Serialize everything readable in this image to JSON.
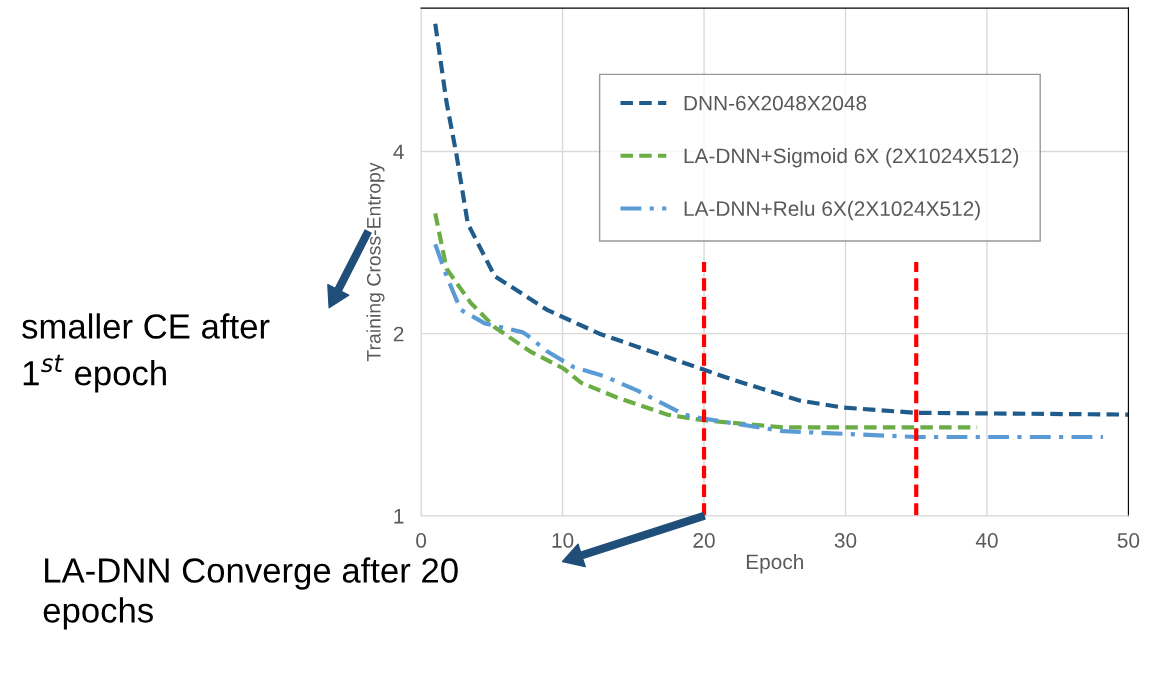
{
  "chart_data": {
    "type": "line",
    "xlabel": "Epoch",
    "ylabel": "Training Cross-Entropy",
    "log": "y",
    "xlim": [
      0,
      50
    ],
    "xticks": [
      0,
      10,
      20,
      30,
      40,
      50
    ],
    "ylim": [
      1,
      6.9
    ],
    "yticks": [
      1,
      2,
      4
    ],
    "grid": true,
    "legend": "top right",
    "marker": "none",
    "series": [
      {
        "name": "DNN-6X2048X2048",
        "color": "#1f5c8b",
        "line_style": "dashed",
        "x": [
          1,
          1.8,
          2.5,
          3.3,
          5.2,
          8.9,
          12.6,
          19.8,
          22,
          26.8,
          29.8,
          35,
          50
        ],
        "values": [
          6.5,
          4.82,
          3.95,
          3.04,
          2.49,
          2.19,
          2.0,
          1.75,
          1.68,
          1.55,
          1.51,
          1.48,
          1.47
        ]
      },
      {
        "name": "LA-DNN+Sigmoid 6X (2X1024X512)",
        "color": "#6aad45",
        "line_style": "dashed",
        "x": [
          1,
          1.8,
          3.5,
          5.2,
          7.7,
          10.1,
          11.3,
          13.8,
          17.4,
          19.8,
          25.6,
          39.3
        ],
        "values": [
          3.16,
          2.56,
          2.25,
          2.05,
          1.87,
          1.75,
          1.66,
          1.57,
          1.47,
          1.44,
          1.4,
          1.4
        ]
      },
      {
        "name": "LA-DNN+Relu 6X(2X1024X512)",
        "color": "#5b9bd5",
        "line_style": "dashdot",
        "x": [
          1,
          1.8,
          2.8,
          4.5,
          7.2,
          7.6,
          8.9,
          10.8,
          13.0,
          15.3,
          18.6,
          19.8,
          25.6,
          35,
          48.2
        ],
        "values": [
          2.81,
          2.49,
          2.19,
          2.08,
          2.01,
          1.98,
          1.87,
          1.76,
          1.7,
          1.61,
          1.47,
          1.45,
          1.38,
          1.35,
          1.35
        ]
      }
    ],
    "ref_lines": [
      {
        "axis": "x",
        "value": 20,
        "color": "#ff0000",
        "line_style": "dashed"
      },
      {
        "axis": "x",
        "value": 35,
        "color": "#ff0000",
        "line_style": "dashed"
      }
    ],
    "annotations": [
      "smaller CE after\n1$^{st}$ epoch",
      "LA-DNN Converge after 20\nepochs"
    ]
  }
}
